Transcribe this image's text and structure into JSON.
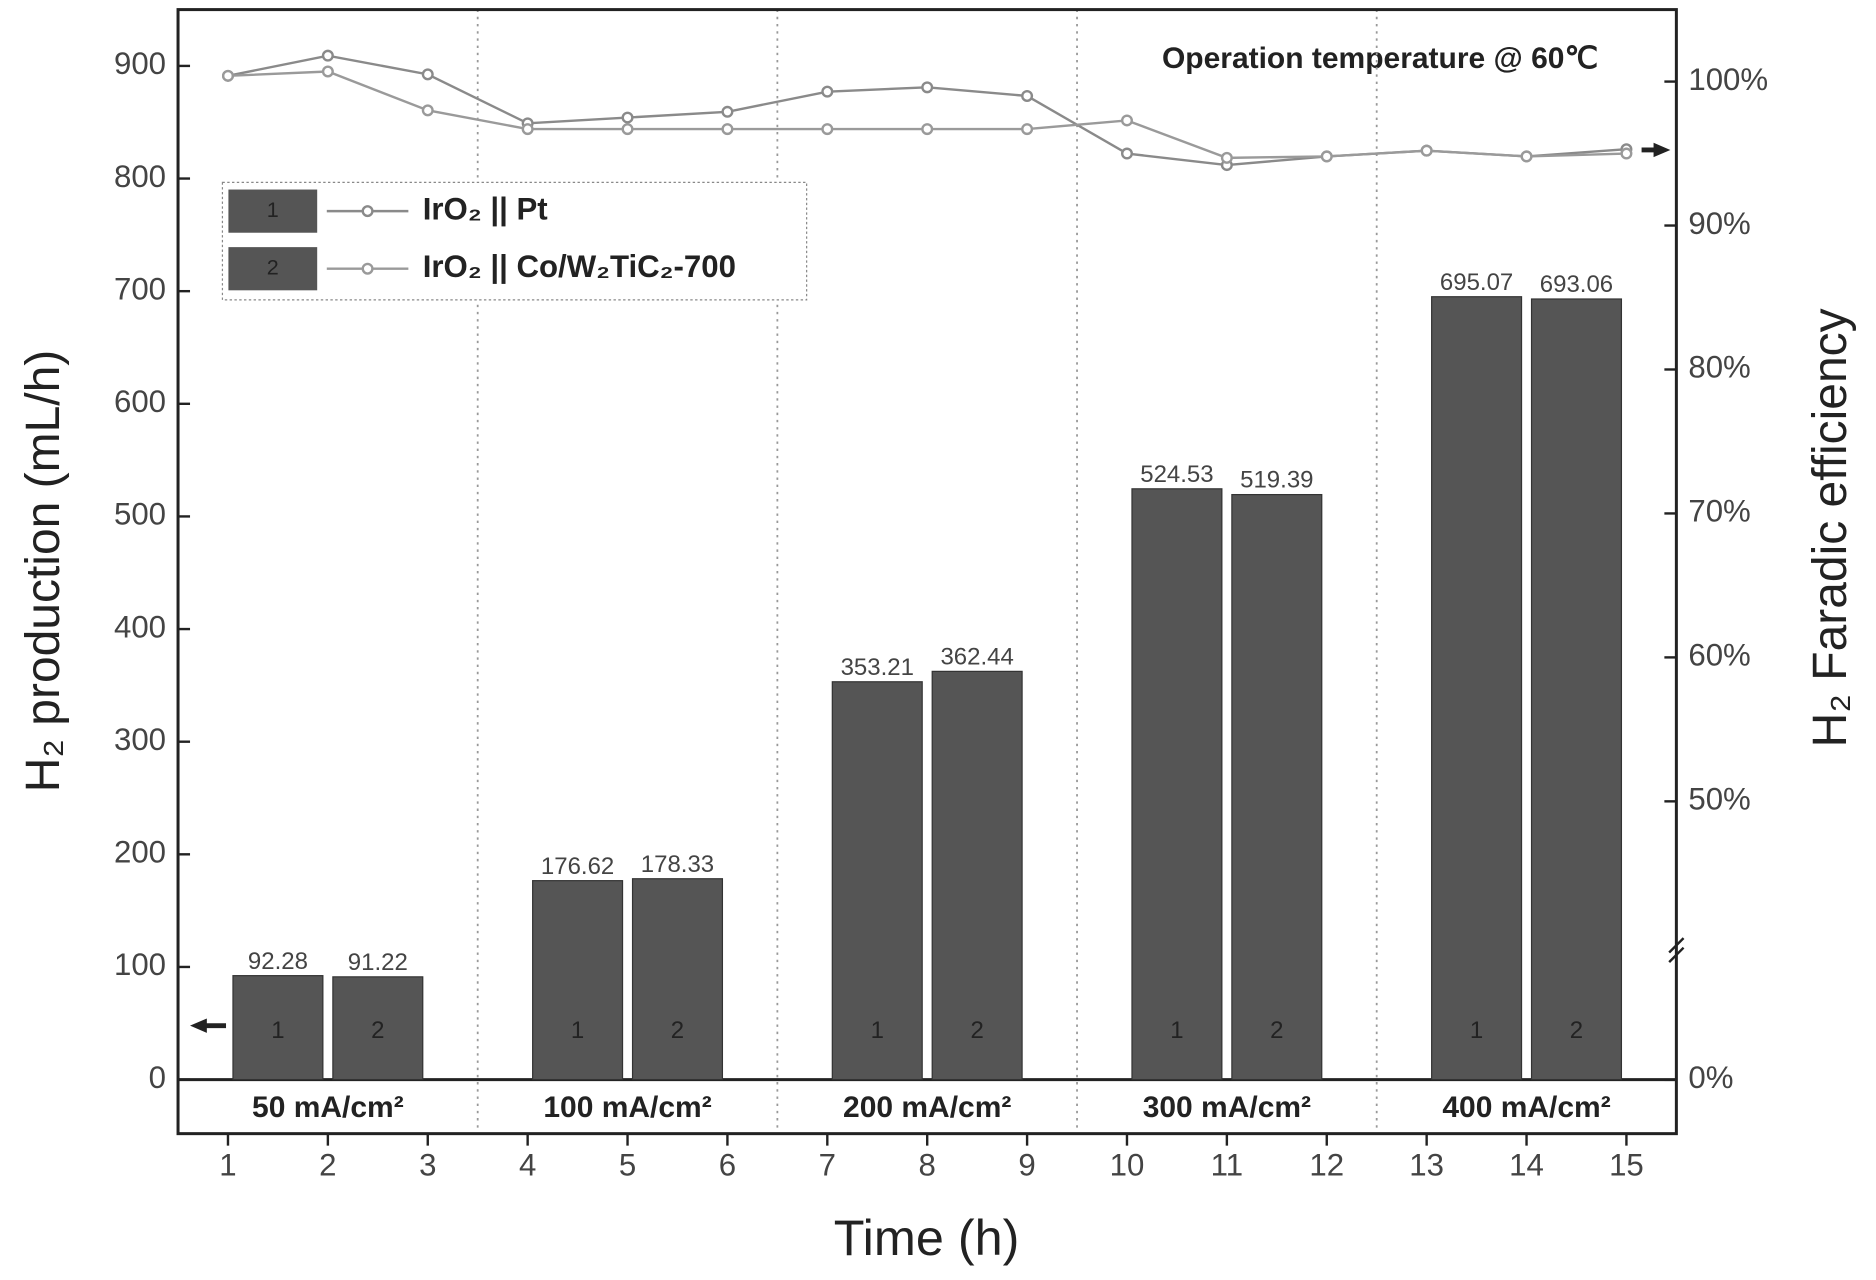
{
  "chart_data": {
    "type": "bar",
    "annotation": "Operation temperature @ 60℃",
    "xlabel": "Time (h)",
    "ylabel": "H₂ production (mL/h)",
    "y2label": "H₂ Faradic efficiency",
    "xlim": [
      0.5,
      15.5
    ],
    "xticks": [
      1,
      2,
      3,
      4,
      5,
      6,
      7,
      8,
      9,
      10,
      11,
      12,
      13,
      14,
      15
    ],
    "ylim": [
      -48,
      950
    ],
    "yticks": [
      0,
      100,
      200,
      300,
      400,
      500,
      600,
      700,
      800,
      900
    ],
    "y2lim": [
      -16,
      105
    ],
    "y2break": 40,
    "y2ticks": [
      {
        "value": 0,
        "label": "0%"
      },
      {
        "value": 50,
        "label": "50%"
      },
      {
        "value": 60,
        "label": "60%"
      },
      {
        "value": 70,
        "label": "70%"
      },
      {
        "value": 80,
        "label": "80%"
      },
      {
        "value": 90,
        "label": "90%"
      },
      {
        "value": 100,
        "label": "100%"
      }
    ],
    "group_labels": [
      "50 mA/cm²",
      "100 mA/cm²",
      "200 mA/cm²",
      "300 mA/cm²",
      "400 mA/cm²"
    ],
    "series": [
      {
        "name": "IrO₂ || Pt",
        "label": "1",
        "color": "#555555",
        "line_color": "#8a8a8a",
        "bar_x": [
          1.5,
          4.5,
          7.5,
          10.5,
          13.5
        ],
        "bar_values": [
          92.28,
          176.62,
          353.21,
          524.53,
          695.07
        ],
        "x": [
          1,
          2,
          3,
          4,
          5,
          6,
          7,
          8,
          9,
          10,
          11,
          12,
          13,
          14,
          15
        ],
        "fe_values": [
          100.4,
          101.8,
          100.5,
          97.1,
          97.5,
          97.9,
          99.3,
          99.6,
          99.0,
          95.0,
          94.2,
          94.8,
          95.2,
          94.8,
          95.3
        ]
      },
      {
        "name": "IrO₂ || Co/W₂TiC₂-700",
        "label": "2",
        "color": "#555555",
        "line_color": "#9a9a9a",
        "bar_x": [
          2.5,
          5.5,
          8.5,
          11.5,
          14.5
        ],
        "bar_values": [
          91.22,
          178.33,
          362.44,
          519.39,
          693.06
        ],
        "x": [
          1,
          2,
          3,
          4,
          5,
          6,
          7,
          8,
          9,
          10,
          11,
          12,
          13,
          14,
          15
        ],
        "fe_values": [
          100.4,
          100.7,
          98.0,
          96.7,
          96.7,
          96.7,
          96.7,
          96.7,
          96.7,
          97.3,
          94.7,
          94.8,
          95.2,
          94.8,
          95.0
        ]
      }
    ]
  }
}
